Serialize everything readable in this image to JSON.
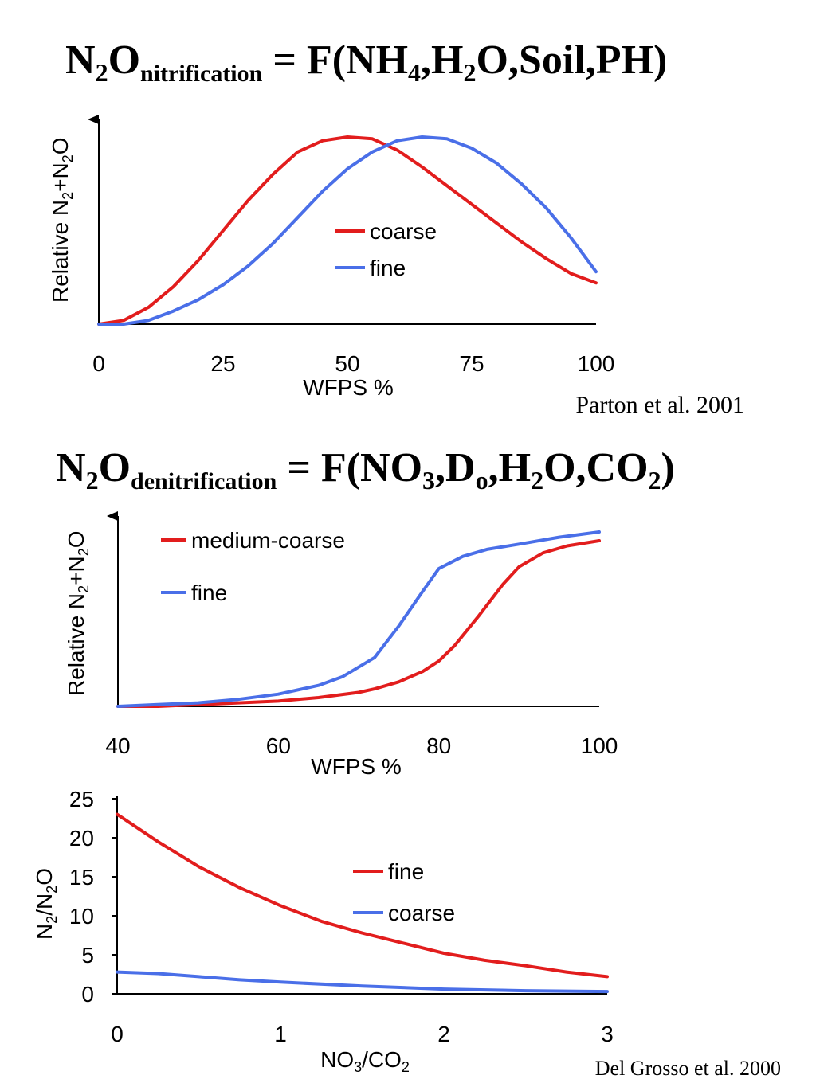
{
  "colors": {
    "red": "#e21d1d",
    "blue": "#4a6fe8",
    "axis": "#000000"
  },
  "heading1": {
    "base": "N",
    "sub1": "2",
    "mid": "O",
    "sub2": "nitrification",
    "rest": " = F(NH",
    "sub3": "4",
    "rest2": ",H",
    "sub4": "2",
    "rest3": "O,Soil,PH)"
  },
  "heading2": {
    "base": "N",
    "sub1": "2",
    "mid": "O",
    "sub2": "denitrification",
    "rest": " = F(NO",
    "sub3": "3",
    "rest2": ",D",
    "sub4": "o",
    "rest3": ",H",
    "sub5": "2",
    "rest4": "O,CO",
    "sub6": "2",
    "rest5": ")"
  },
  "citation1": "Parton et al. 2001",
  "citation2": "Del Grosso et al. 2000",
  "chart_data": [
    {
      "type": "line",
      "ylabel_parts": {
        "a": "Relative N",
        "b": "2",
        "c": "+N",
        "d": "2",
        "e": "O"
      },
      "xlabel": "WFPS %",
      "xlim": [
        0,
        100
      ],
      "ylim": [
        0,
        1
      ],
      "xticks": [
        "0",
        "25",
        "50",
        "75",
        "100"
      ],
      "yticks_shown": false,
      "legend_placement": "center",
      "series": [
        {
          "name": "coarse",
          "color": "red",
          "x": [
            0,
            5,
            10,
            15,
            20,
            25,
            30,
            35,
            40,
            45,
            50,
            55,
            60,
            65,
            70,
            75,
            80,
            85,
            90,
            95,
            100
          ],
          "y": [
            0.0,
            0.02,
            0.09,
            0.2,
            0.34,
            0.5,
            0.66,
            0.8,
            0.92,
            0.98,
            1.0,
            0.99,
            0.93,
            0.84,
            0.74,
            0.64,
            0.54,
            0.44,
            0.35,
            0.27,
            0.22
          ]
        },
        {
          "name": "fine",
          "color": "blue",
          "x": [
            0,
            5,
            10,
            15,
            20,
            25,
            30,
            35,
            40,
            45,
            50,
            55,
            60,
            65,
            70,
            75,
            80,
            85,
            90,
            95,
            100
          ],
          "y": [
            0.0,
            0.0,
            0.02,
            0.07,
            0.13,
            0.21,
            0.31,
            0.43,
            0.57,
            0.71,
            0.83,
            0.92,
            0.98,
            1.0,
            0.99,
            0.94,
            0.86,
            0.75,
            0.62,
            0.46,
            0.28
          ]
        }
      ]
    },
    {
      "type": "line",
      "ylabel_parts": {
        "a": "Relative N",
        "b": "2",
        "c": "+N",
        "d": "2",
        "e": "O"
      },
      "xlabel": "WFPS %",
      "xlim": [
        40,
        100
      ],
      "ylim": [
        0,
        1
      ],
      "xticks": [
        "40",
        "60",
        "80",
        "100"
      ],
      "yticks_shown": false,
      "legend_placement": "top-left",
      "series": [
        {
          "name": "medium-coarse",
          "color": "red",
          "x": [
            40,
            45,
            50,
            55,
            60,
            65,
            70,
            72,
            75,
            78,
            80,
            82,
            85,
            88,
            90,
            93,
            96,
            100
          ],
          "y": [
            0.0,
            0.0,
            0.01,
            0.02,
            0.03,
            0.05,
            0.08,
            0.1,
            0.14,
            0.2,
            0.26,
            0.35,
            0.52,
            0.7,
            0.8,
            0.88,
            0.92,
            0.95
          ]
        },
        {
          "name": "fine",
          "color": "blue",
          "x": [
            40,
            45,
            50,
            55,
            60,
            65,
            68,
            72,
            75,
            78,
            80,
            83,
            86,
            90,
            95,
            100
          ],
          "y": [
            0.0,
            0.01,
            0.02,
            0.04,
            0.07,
            0.12,
            0.17,
            0.28,
            0.46,
            0.66,
            0.79,
            0.86,
            0.9,
            0.93,
            0.97,
            1.0
          ]
        }
      ]
    },
    {
      "type": "line",
      "ylabel_parts": {
        "a": "N",
        "b": "2",
        "c": "/N",
        "d": "2",
        "e": "O"
      },
      "xlabel_parts": {
        "a": "NO",
        "b": "3",
        "c": "/CO",
        "d": "2"
      },
      "xlim": [
        0,
        3
      ],
      "ylim": [
        0,
        25
      ],
      "xticks": [
        "0",
        "1",
        "2",
        "3"
      ],
      "yticks": [
        "0",
        "5",
        "10",
        "15",
        "20",
        "25"
      ],
      "legend_placement": "center-right",
      "series": [
        {
          "name": "fine",
          "color": "red",
          "x": [
            0,
            0.25,
            0.5,
            0.75,
            1.0,
            1.25,
            1.5,
            1.75,
            2.0,
            2.25,
            2.5,
            2.75,
            3.0
          ],
          "y": [
            23,
            19.5,
            16.3,
            13.6,
            11.3,
            9.3,
            7.8,
            6.5,
            5.2,
            4.3,
            3.6,
            2.8,
            2.2
          ]
        },
        {
          "name": "coarse",
          "color": "blue",
          "x": [
            0,
            0.25,
            0.5,
            0.75,
            1.0,
            1.5,
            2.0,
            2.5,
            3.0
          ],
          "y": [
            2.8,
            2.6,
            2.2,
            1.8,
            1.5,
            1.0,
            0.6,
            0.4,
            0.3
          ]
        }
      ]
    }
  ]
}
